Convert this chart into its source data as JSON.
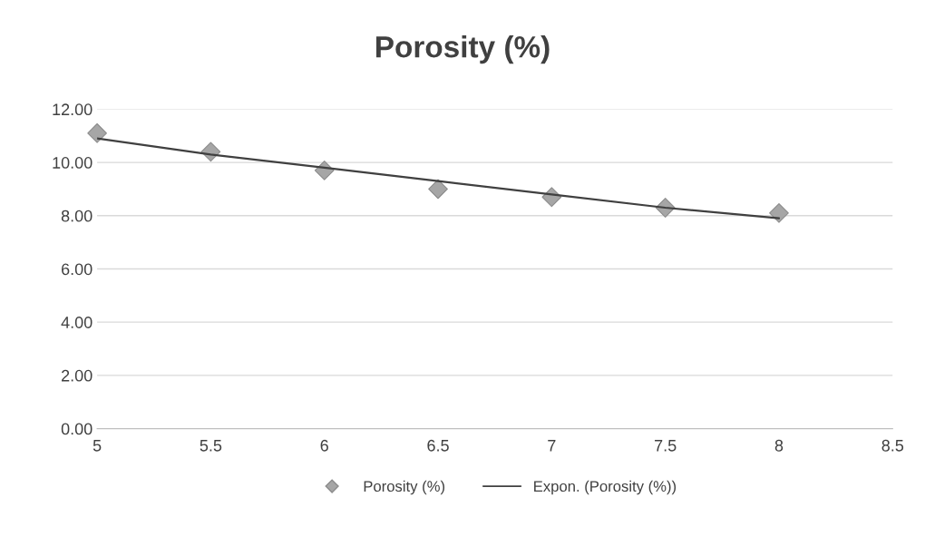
{
  "chart_data": {
    "type": "scatter",
    "title": "Porosity (%)",
    "xlim": [
      5,
      8.5
    ],
    "xticks": [
      5,
      5.5,
      6,
      6.5,
      7,
      7.5,
      8,
      8.5
    ],
    "ylim": [
      0,
      12
    ],
    "yticks": [
      {
        "value": 0,
        "label": "0.00"
      },
      {
        "value": 2,
        "label": "2.00"
      },
      {
        "value": 4,
        "label": "4.00"
      },
      {
        "value": 6,
        "label": "6.00"
      },
      {
        "value": 8,
        "label": "8.00"
      },
      {
        "value": 10,
        "label": "10.00"
      },
      {
        "value": 12,
        "label": "12.00"
      }
    ],
    "grid": "y",
    "legend": "bottom",
    "series": [
      {
        "name": "Porosity (%)",
        "marker": "diamond",
        "color": "#a6a6a6",
        "x": [
          5,
          5.5,
          6,
          6.5,
          7,
          7.5,
          8
        ],
        "values": [
          11.1,
          10.4,
          9.7,
          9.0,
          8.7,
          8.3,
          8.1
        ]
      },
      {
        "name": "Expon. (Porosity (%))",
        "type": "line",
        "marker": "none",
        "line_style": "solid",
        "color": "#404040",
        "x": [
          5,
          5.5,
          6,
          6.5,
          7,
          7.5,
          8
        ],
        "values": [
          10.9,
          10.3,
          9.8,
          9.3,
          8.8,
          8.3,
          7.9
        ]
      }
    ]
  }
}
